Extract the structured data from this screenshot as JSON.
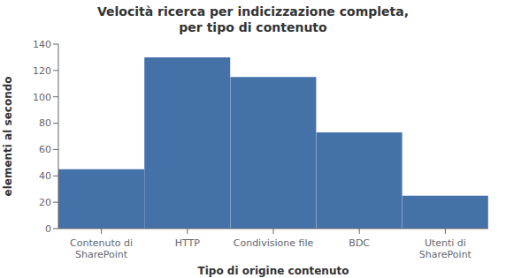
{
  "chart_data": {
    "type": "bar",
    "title": "Velocità ricerca per indicizzazione completa,\nper tipo di contenuto",
    "categories": [
      "Contenuto di\nSharePoint",
      "HTTP",
      "Condivisione file",
      "BDC",
      "Utenti di\nSharePoint"
    ],
    "values": [
      45,
      130,
      115,
      73,
      25
    ],
    "color": "#4472a8",
    "xlabel": "Tipo di origine contenuto",
    "ylabel": "elementi al secondo",
    "ylim": [
      0,
      140
    ],
    "yticks": [
      0,
      20,
      40,
      60,
      80,
      100,
      120,
      140
    ],
    "grid": false
  }
}
